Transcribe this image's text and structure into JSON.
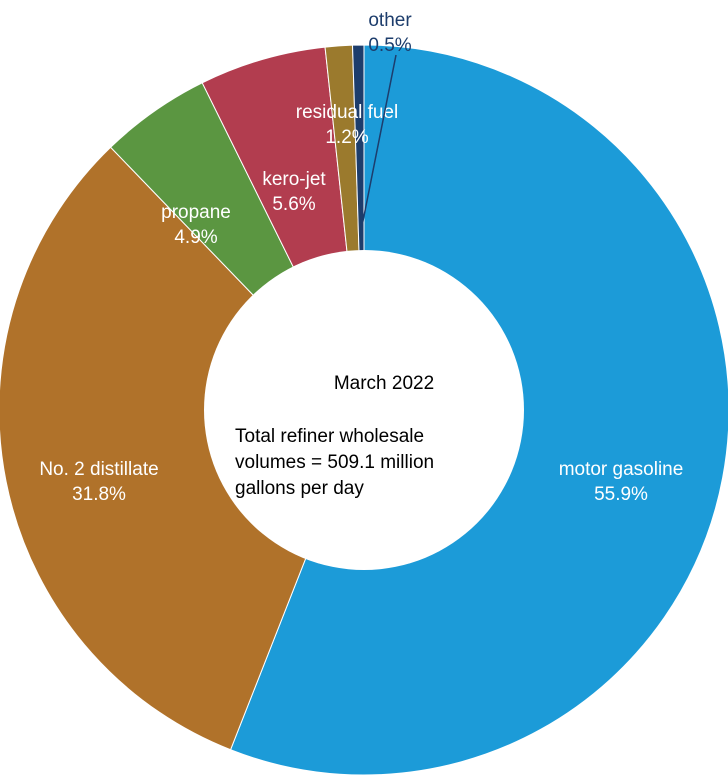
{
  "chart_data": {
    "type": "pie",
    "donut": true,
    "categories": [
      "motor gasoline",
      "No. 2 distillate",
      "propane",
      "kero-jet",
      "residual fuel",
      "other"
    ],
    "values": [
      55.9,
      31.8,
      4.9,
      5.6,
      1.2,
      0.5
    ],
    "value_labels": [
      "55.9%",
      "31.8%",
      "4.9%",
      "5.6%",
      "1.2%",
      "0.5%"
    ],
    "colors": [
      "#1c9bd8",
      "#b0722a",
      "#5b9641",
      "#b23d4f",
      "#9b7a2d",
      "#1d3d6c"
    ],
    "label_colors": [
      "#ffffff",
      "#ffffff",
      "#ffffff",
      "#ffffff",
      "#ffffff",
      "#1d3d6c"
    ],
    "start_angle_deg": 0,
    "direction": "clockwise",
    "legend": "none",
    "center_text": {
      "title": "March 2022",
      "line1": "Total refiner wholesale",
      "line2": "volumes =  509.1 million",
      "line3": "gallons per day"
    }
  }
}
